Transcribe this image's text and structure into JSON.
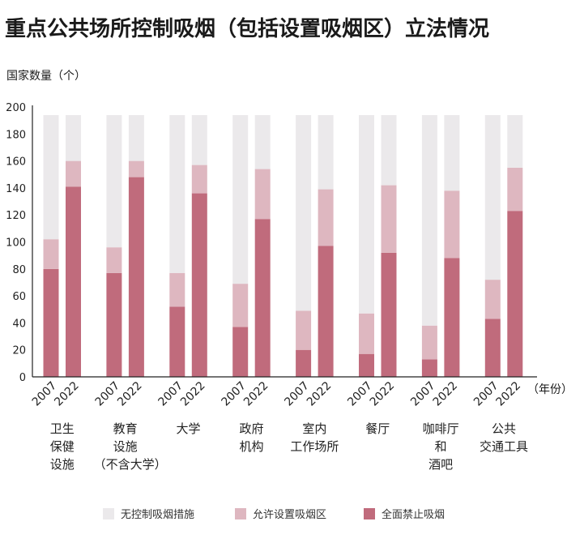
{
  "chart_data": {
    "type": "bar",
    "stacked": true,
    "title": "重点公共场所控制吸烟（包括设置吸烟区）立法情况",
    "ylabel": "国家数量（个）",
    "xlabel": "（年份）",
    "ylim": [
      0,
      200
    ],
    "yticks": [
      0,
      20,
      40,
      60,
      80,
      100,
      120,
      140,
      160,
      180,
      200
    ],
    "years": [
      "2007",
      "2022"
    ],
    "categories": [
      [
        "卫生",
        "保健",
        "设施"
      ],
      [
        "教育",
        "设施",
        "（不含大学）"
      ],
      [
        "大学"
      ],
      [
        "政府",
        "机构"
      ],
      [
        "室内",
        "工作场所"
      ],
      [
        "餐厅"
      ],
      [
        "咖啡厅",
        "和",
        "酒吧"
      ],
      [
        "公共",
        "交通工具"
      ]
    ],
    "series": [
      {
        "name": "全面禁止吸烟",
        "color": "#c06b7c",
        "values": [
          [
            80,
            141
          ],
          [
            77,
            148
          ],
          [
            52,
            136
          ],
          [
            37,
            117
          ],
          [
            20,
            97
          ],
          [
            17,
            92
          ],
          [
            13,
            88
          ],
          [
            43,
            123
          ]
        ]
      },
      {
        "name": "允许设置吸烟区",
        "color": "#deb7c0",
        "values": [
          [
            22,
            19
          ],
          [
            19,
            12
          ],
          [
            25,
            21
          ],
          [
            32,
            37
          ],
          [
            29,
            42
          ],
          [
            30,
            50
          ],
          [
            25,
            50
          ],
          [
            29,
            32
          ]
        ]
      },
      {
        "name": "无控制吸烟措施",
        "color": "#ebe9eb",
        "values": [
          [
            92,
            34
          ],
          [
            98,
            34
          ],
          [
            117,
            37
          ],
          [
            125,
            40
          ],
          [
            145,
            55
          ],
          [
            147,
            52
          ],
          [
            156,
            56
          ],
          [
            122,
            39
          ]
        ]
      }
    ],
    "legend_order": [
      "无控制吸烟措施",
      "允许设置吸烟区",
      "全面禁止吸烟"
    ],
    "legend_position": "bottom",
    "grid": false
  }
}
